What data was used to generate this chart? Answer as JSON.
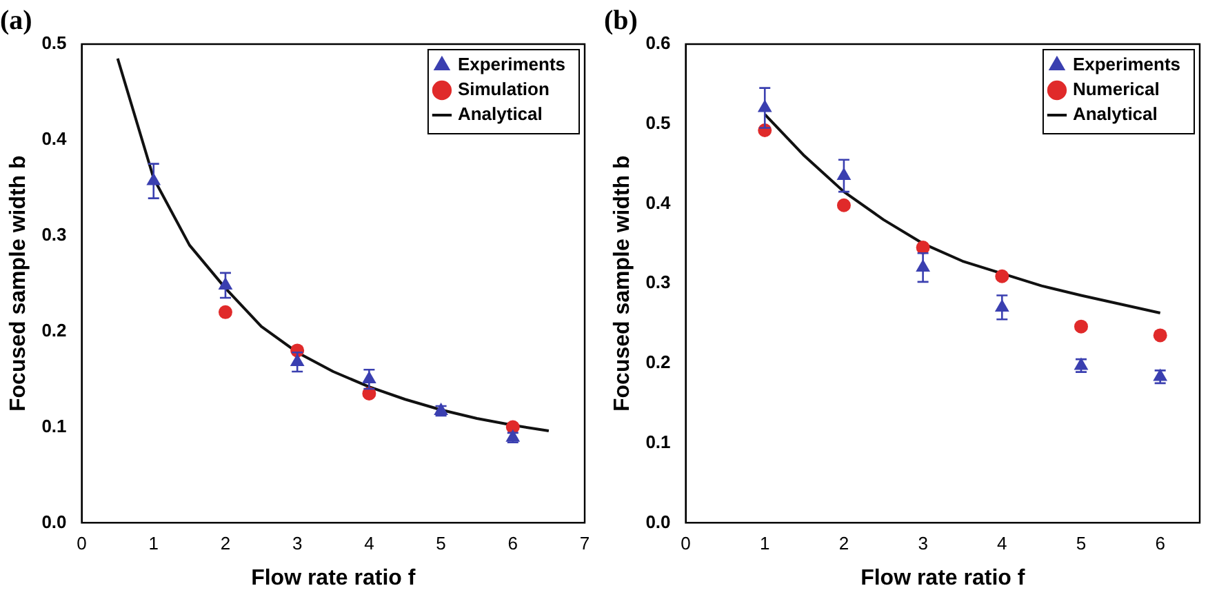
{
  "chart_data": [
    {
      "type": "scatter",
      "title": "(a)",
      "xlabel": "Flow rate ratio f",
      "ylabel": "Focused sample width b",
      "xlim": [
        0,
        7
      ],
      "xticks": [
        0,
        1,
        2,
        3,
        4,
        5,
        6,
        7
      ],
      "ylim": [
        0,
        0.5
      ],
      "yticks": [
        {
          "value": 0,
          "label": "0.0"
        },
        0.1,
        0.2,
        0.3,
        0.4,
        0.5
      ],
      "grid": false,
      "legend": "top right",
      "series": [
        {
          "name": "Experiments",
          "type": "scatter",
          "marker": "triangle",
          "color": "#3a3fb0",
          "x": [
            1,
            2,
            3,
            4,
            5,
            6
          ],
          "values": [
            0.357,
            0.248,
            0.168,
            0.15,
            0.117,
            0.089
          ],
          "errors": [
            0.018,
            0.013,
            0.01,
            0.01,
            0.005,
            0.005
          ]
        },
        {
          "name": "Simulation",
          "type": "scatter",
          "marker": "circle",
          "color": "#e02a2a",
          "x": [
            2,
            3,
            4,
            6
          ],
          "values": [
            0.22,
            0.18,
            0.135,
            0.1
          ]
        },
        {
          "name": "Analytical",
          "type": "line",
          "marker": "none",
          "color": "#111111",
          "x": [
            0.5,
            1,
            1.5,
            2,
            2.5,
            3,
            3.5,
            4,
            4.5,
            5,
            5.5,
            6,
            6.5
          ],
          "values": [
            0.485,
            0.36,
            0.29,
            0.245,
            0.205,
            0.178,
            0.158,
            0.142,
            0.129,
            0.118,
            0.109,
            0.102,
            0.096
          ]
        }
      ]
    },
    {
      "type": "scatter",
      "title": "(b)",
      "xlabel": "Flow rate ratio f",
      "ylabel": "Focused sample width b",
      "xlim": [
        0,
        6.5
      ],
      "xticks": [
        0,
        1,
        2,
        3,
        4,
        5,
        6
      ],
      "ylim": [
        0,
        0.6
      ],
      "yticks": [
        {
          "value": 0,
          "label": "0.0"
        },
        0.1,
        0.2,
        0.3,
        0.4,
        0.5,
        0.6
      ],
      "grid": false,
      "legend": "top right",
      "series": [
        {
          "name": "Experiments",
          "type": "scatter",
          "marker": "triangle",
          "color": "#3a3fb0",
          "x": [
            1,
            2,
            3,
            4,
            5,
            6
          ],
          "values": [
            0.52,
            0.435,
            0.32,
            0.27,
            0.197,
            0.183
          ],
          "errors": [
            0.025,
            0.02,
            0.018,
            0.015,
            0.008,
            0.008
          ]
        },
        {
          "name": "Numerical",
          "type": "scatter",
          "marker": "circle",
          "color": "#e02a2a",
          "x": [
            1,
            2,
            3,
            4,
            5,
            6
          ],
          "values": [
            0.492,
            0.398,
            0.345,
            0.309,
            0.246,
            0.235
          ]
        },
        {
          "name": "Analytical",
          "type": "line",
          "marker": "none",
          "color": "#111111",
          "x": [
            1,
            1.5,
            2,
            2.5,
            3,
            3.5,
            4.5,
            5,
            5.5,
            6
          ],
          "values": [
            0.512,
            0.46,
            0.415,
            0.38,
            0.35,
            0.328,
            0.297,
            0.285,
            0.274,
            0.263
          ]
        }
      ]
    }
  ]
}
